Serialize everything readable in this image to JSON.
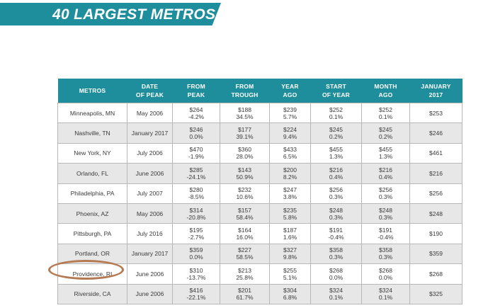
{
  "title": "40 LARGEST METROS",
  "columns": [
    [
      "METROS"
    ],
    [
      "DATE",
      "OF PEAK"
    ],
    [
      "FROM",
      "PEAK"
    ],
    [
      "FROM",
      "TROUGH"
    ],
    [
      "YEAR",
      "AGO"
    ],
    [
      "START",
      "OF YEAR"
    ],
    [
      "MONTH",
      "AGO"
    ],
    [
      "JANUARY",
      "2017"
    ]
  ],
  "rows": [
    {
      "metro": "Minneapolis, MN",
      "peak_date": "May 2006",
      "from_peak": [
        "$264",
        "-4.2%"
      ],
      "from_trough": [
        "$188",
        "34.5%"
      ],
      "year_ago": [
        "$239",
        "5.7%"
      ],
      "start_of_year": [
        "$252",
        "0.1%"
      ],
      "month_ago": [
        "$252",
        "0.1%"
      ],
      "jan_2017": "$253"
    },
    {
      "metro": "Nashville, TN",
      "peak_date": "January 2017",
      "from_peak": [
        "$246",
        "0.0%"
      ],
      "from_trough": [
        "$177",
        "39.1%"
      ],
      "year_ago": [
        "$224",
        "9.4%"
      ],
      "start_of_year": [
        "$245",
        "0.2%"
      ],
      "month_ago": [
        "$245",
        "0.2%"
      ],
      "jan_2017": "$246"
    },
    {
      "metro": "New York, NY",
      "peak_date": "July 2006",
      "from_peak": [
        "$470",
        "-1.9%"
      ],
      "from_trough": [
        "$360",
        "28.0%"
      ],
      "year_ago": [
        "$433",
        "6.5%"
      ],
      "start_of_year": [
        "$455",
        "1.3%"
      ],
      "month_ago": [
        "$455",
        "1.3%"
      ],
      "jan_2017": "$461"
    },
    {
      "metro": "Orlando, FL",
      "peak_date": "June 2006",
      "from_peak": [
        "$285",
        "-24.1%"
      ],
      "from_trough": [
        "$143",
        "50.9%"
      ],
      "year_ago": [
        "$200",
        "8.2%"
      ],
      "start_of_year": [
        "$216",
        "0.4%"
      ],
      "month_ago": [
        "$216",
        "0.4%"
      ],
      "jan_2017": "$216"
    },
    {
      "metro": "Philadelphia, PA",
      "peak_date": "July 2007",
      "from_peak": [
        "$280",
        "-8.5%"
      ],
      "from_trough": [
        "$232",
        "10.6%"
      ],
      "year_ago": [
        "$247",
        "3.8%"
      ],
      "start_of_year": [
        "$256",
        "0.3%"
      ],
      "month_ago": [
        "$256",
        "0.3%"
      ],
      "jan_2017": "$256"
    },
    {
      "metro": "Phoenix, AZ",
      "peak_date": "May 2006",
      "from_peak": [
        "$314",
        "-20.8%"
      ],
      "from_trough": [
        "$157",
        "58.4%"
      ],
      "year_ago": [
        "$235",
        "5.8%"
      ],
      "start_of_year": [
        "$248",
        "0.3%"
      ],
      "month_ago": [
        "$248",
        "0.3%"
      ],
      "jan_2017": "$248"
    },
    {
      "metro": "Pittsburgh, PA",
      "peak_date": "July 2016",
      "from_peak": [
        "$195",
        "-2.7%"
      ],
      "from_trough": [
        "$164",
        "16.0%"
      ],
      "year_ago": [
        "$187",
        "1.6%"
      ],
      "start_of_year": [
        "$191",
        "-0.4%"
      ],
      "month_ago": [
        "$191",
        "-0.4%"
      ],
      "jan_2017": "$190"
    },
    {
      "metro": "Portland, OR",
      "peak_date": "January 2017",
      "from_peak": [
        "$359",
        "0.0%"
      ],
      "from_trough": [
        "$227",
        "58.5%"
      ],
      "year_ago": [
        "$327",
        "9.8%"
      ],
      "start_of_year": [
        "$358",
        "0.3%"
      ],
      "month_ago": [
        "$358",
        "0.3%"
      ],
      "jan_2017": "$359"
    },
    {
      "metro": "Providence, RI",
      "peak_date": "June 2006",
      "from_peak": [
        "$310",
        "-13.7%"
      ],
      "from_trough": [
        "$213",
        "25.8%"
      ],
      "year_ago": [
        "$255",
        "5.1%"
      ],
      "start_of_year": [
        "$268",
        "0.0%"
      ],
      "month_ago": [
        "$268",
        "0.0%"
      ],
      "jan_2017": "$268",
      "highlighted": true
    },
    {
      "metro": "Riverside, CA",
      "peak_date": "June 2006",
      "from_peak": [
        "$416",
        "-22.1%"
      ],
      "from_trough": [
        "$201",
        "61.7%"
      ],
      "year_ago": [
        "$304",
        "6.8%"
      ],
      "start_of_year": [
        "$324",
        "0.1%"
      ],
      "month_ago": [
        "$324",
        "0.1%"
      ],
      "jan_2017": "$325"
    }
  ],
  "colors": {
    "accent": "#1e8d9c",
    "row_alt": "#e7e7e7",
    "highlight_circle": "#b57a52"
  }
}
